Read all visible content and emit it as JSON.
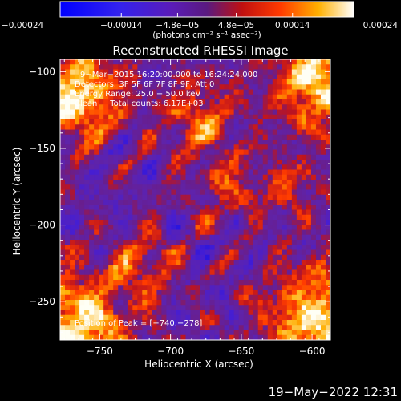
{
  "chart_data": {
    "type": "heatmap",
    "title": "Reconstructed RHESSI Image",
    "xlabel": "Heliocentric X (arcsec)",
    "ylabel": "Heliocentric Y (arcsec)",
    "xlim": [
      -778,
      -587
    ],
    "ylim": [
      -275,
      -92
    ],
    "x_ticks": [
      -750,
      -700,
      -650,
      -600
    ],
    "x_tick_labels": [
      "−750",
      "−700",
      "−650",
      "−600"
    ],
    "y_ticks": [
      -100,
      -150,
      -200,
      -250
    ],
    "y_tick_labels": [
      "−100",
      "−150",
      "−200",
      "−250"
    ],
    "colorbar": {
      "ticks": [
        -0.00024,
        -0.00014,
        -4.8e-05,
        4.8e-05,
        0.00014,
        0.00024
      ],
      "tick_labels": [
        "−0.00024",
        "−0.00014",
        "−4.8e−05",
        "4.8e−05",
        "0.00014",
        "0.00024"
      ],
      "unit_label": "(photons cm⁻² s⁻¹ asec⁻²)",
      "range": [
        -0.00024,
        0.00024
      ]
    },
    "annotations": {
      "time_range": "9−Mar−2015 16:20:00.000 to 16:24:24.000",
      "detectors": "Detectors: 3F 5F 6F 7F 8F 9F, Att 0",
      "energy": "Energy Range: 25.0 − 50.0 keV",
      "clean": "Clean     Total counts: 6.17E+03",
      "peak": "Position of Peak = [−740,−278]"
    },
    "grid": false,
    "colormap": "blue-purple-red-yellow-white",
    "bright_regions": [
      "upper-left",
      "upper-right",
      "lower-left",
      "lower-right",
      "upper-center"
    ]
  },
  "footer": {
    "timestamp": "19−May−2022 12:31"
  }
}
